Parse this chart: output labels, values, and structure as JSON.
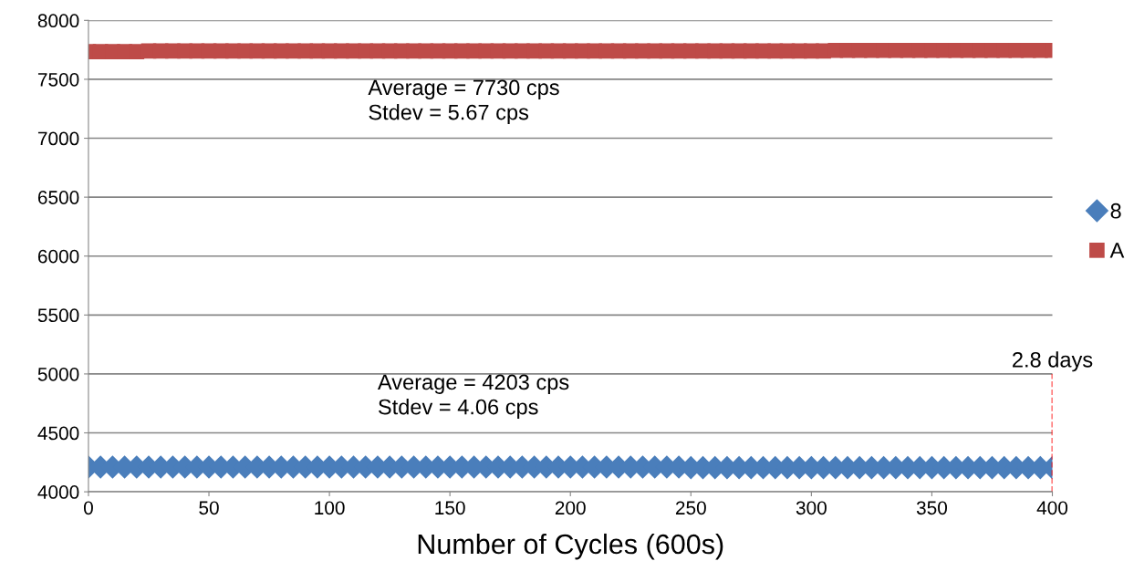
{
  "chart_data": {
    "type": "scatter",
    "xlabel": "Number of Cycles (600s)",
    "x": [
      0,
      5,
      10,
      15,
      20,
      25,
      30,
      35,
      40,
      45,
      50,
      55,
      60,
      65,
      70,
      75,
      80,
      85,
      90,
      95,
      100,
      105,
      110,
      115,
      120,
      125,
      130,
      135,
      140,
      145,
      150,
      155,
      160,
      165,
      170,
      175,
      180,
      185,
      190,
      195,
      200,
      205,
      210,
      215,
      220,
      225,
      230,
      235,
      240,
      245,
      250,
      255,
      260,
      265,
      270,
      275,
      280,
      285,
      290,
      295,
      300,
      305,
      310,
      315,
      320,
      325,
      330,
      335,
      340,
      345,
      350,
      355,
      360,
      365,
      370,
      375,
      380,
      385,
      390,
      395,
      400
    ],
    "series": [
      {
        "name": "8",
        "color": "#4a7ebb",
        "marker": "diamond",
        "values": [
          4210,
          4210,
          4210,
          4210,
          4210,
          4210,
          4210,
          4210,
          4210,
          4210,
          4210,
          4210,
          4210,
          4210,
          4210,
          4210,
          4210,
          4210,
          4210,
          4210,
          4210,
          4210,
          4210,
          4210,
          4210,
          4210,
          4210,
          4210,
          4210,
          4210,
          4210,
          4210,
          4210,
          4210,
          4210,
          4210,
          4210,
          4210,
          4210,
          4210,
          4210,
          4210,
          4210,
          4210,
          4210,
          4210,
          4210,
          4210,
          4210,
          4210,
          4205,
          4205,
          4205,
          4205,
          4205,
          4205,
          4205,
          4205,
          4205,
          4205,
          4205,
          4205,
          4205,
          4205,
          4205,
          4205,
          4205,
          4205,
          4205,
          4205,
          4205,
          4205,
          4205,
          4205,
          4205,
          4205,
          4205,
          4205,
          4205,
          4205,
          4205
        ]
      },
      {
        "name": "A",
        "color": "#be4b48",
        "marker": "square",
        "values": [
          7735,
          7735,
          7735,
          7735,
          7735,
          7740,
          7740,
          7740,
          7740,
          7740,
          7740,
          7740,
          7740,
          7740,
          7740,
          7740,
          7740,
          7740,
          7740,
          7740,
          7740,
          7740,
          7740,
          7740,
          7740,
          7740,
          7740,
          7740,
          7740,
          7740,
          7740,
          7740,
          7740,
          7740,
          7740,
          7740,
          7740,
          7740,
          7740,
          7740,
          7740,
          7740,
          7740,
          7740,
          7740,
          7740,
          7740,
          7740,
          7740,
          7740,
          7740,
          7740,
          7740,
          7740,
          7740,
          7740,
          7740,
          7740,
          7740,
          7740,
          7740,
          7740,
          7745,
          7745,
          7745,
          7745,
          7745,
          7745,
          7745,
          7745,
          7745,
          7745,
          7745,
          7745,
          7745,
          7745,
          7745,
          7745,
          7745,
          7745,
          7745
        ]
      }
    ],
    "xlim": [
      0,
      400
    ],
    "xticks": [
      0,
      50,
      100,
      150,
      200,
      250,
      300,
      350,
      400
    ],
    "ylim": [
      4000,
      8000
    ],
    "yticks": [
      4000,
      4500,
      5000,
      5500,
      6000,
      6500,
      7000,
      7500,
      8000
    ],
    "grid": "y",
    "legend": "right",
    "ref_lines": [
      {
        "axis": "x",
        "value": 400,
        "label": "2.8 days",
        "color": "#ff0000",
        "line_style": "dashed"
      }
    ],
    "annotations": [
      "Average = 7730 cps\nStdev = 5.67 cps",
      "Average = 4203 cps\nStdev = 4.06 cps"
    ]
  }
}
